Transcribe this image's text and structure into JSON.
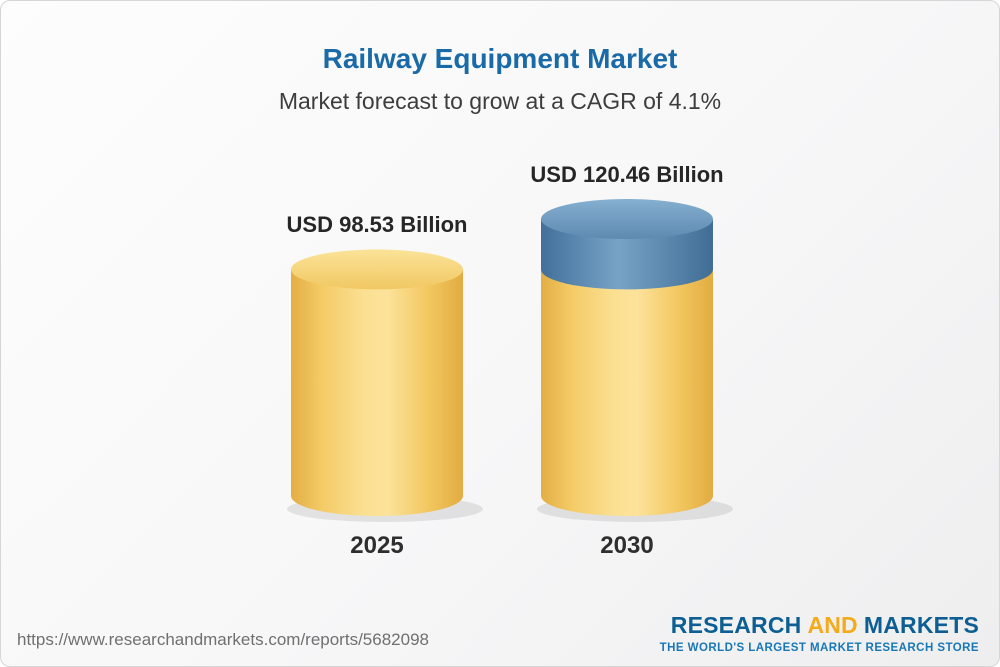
{
  "header": {
    "title": "Railway Equipment Market",
    "subtitle": "Market forecast to grow at a CAGR of 4.1%"
  },
  "chart_data": {
    "type": "bar",
    "title": "Railway Equipment Market",
    "subtitle": "Market forecast to grow at a CAGR of 4.1%",
    "cagr_percent": 4.1,
    "unit": "USD Billion",
    "categories": [
      "2025",
      "2030"
    ],
    "values": [
      98.53,
      120.46
    ],
    "value_labels": [
      "USD 98.53 Billion",
      "USD 120.46 Billion"
    ],
    "series_note": "2030 cylinder shows 2025 base value in gold with growth increment capped in blue",
    "legend": "none",
    "colors": {
      "base_segment": "#F5CE6B",
      "growth_segment": "#5B8CB8",
      "title_text": "#1B6AA8"
    }
  },
  "footer": {
    "url": "https://www.researchandmarkets.com/reports/5682098",
    "logo": {
      "research": "RESEARCH",
      "and": "AND",
      "markets": "MARKETS",
      "tagline": "THE WORLD'S LARGEST MARKET RESEARCH STORE"
    }
  }
}
